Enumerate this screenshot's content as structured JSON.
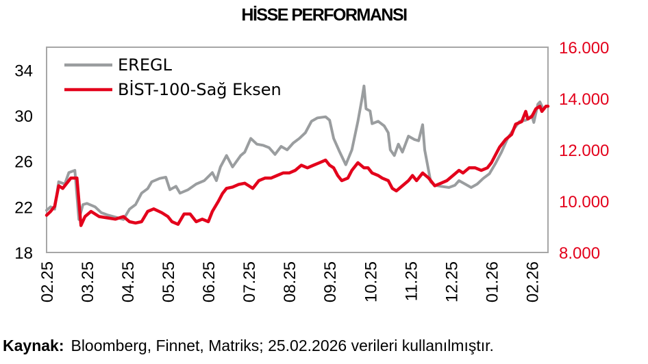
{
  "title": "HİSSE PERFORMANSI",
  "source": {
    "label": "Kaynak:",
    "text": "Bloomberg, Finnet, Matriks; 25.02.2026 verileri kullanılmıştır."
  },
  "colors": {
    "eregl": "#9a9d9f",
    "bist": "#e3001b",
    "left_axis_text": "#000000",
    "right_axis_text": "#e3001b",
    "frame": "#a6a6a6"
  },
  "chart_data": {
    "type": "line",
    "title": "HİSSE PERFORMANSI",
    "x_tick_labels": [
      "02.25",
      "03.25",
      "04.25",
      "05.25",
      "06.25",
      "07.25",
      "08.25",
      "09.25",
      "10.25",
      "11.25",
      "12.25",
      "01.26",
      "02.26"
    ],
    "x_range": [
      0,
      12.4
    ],
    "left_axis": {
      "range": [
        18,
        36
      ],
      "ticks": [
        18,
        22,
        26,
        30,
        34
      ],
      "tick_labels": [
        "18",
        "22",
        "26",
        "30",
        "34"
      ]
    },
    "right_axis": {
      "range": [
        8000,
        16000
      ],
      "ticks": [
        8000,
        10000,
        12000,
        14000,
        16000
      ],
      "tick_labels": [
        "8.000",
        "10.000",
        "12.000",
        "14.000",
        "16.000"
      ]
    },
    "legend": {
      "position": "top-left",
      "entries": [
        "EREGL",
        "BİST-100-Sağ Eksen"
      ]
    },
    "grid": false,
    "series": [
      {
        "name": "EREGL",
        "axis": "left",
        "points": [
          [
            0,
            21.7
          ],
          [
            0.1,
            22.0
          ],
          [
            0.2,
            21.8
          ],
          [
            0.3,
            24.2
          ],
          [
            0.45,
            24.0
          ],
          [
            0.55,
            25.0
          ],
          [
            0.7,
            25.2
          ],
          [
            0.75,
            23.0
          ],
          [
            0.8,
            20.9
          ],
          [
            0.9,
            22.2
          ],
          [
            1.0,
            22.3
          ],
          [
            1.2,
            22.0
          ],
          [
            1.35,
            21.5
          ],
          [
            1.5,
            21.3
          ],
          [
            1.7,
            21.1
          ],
          [
            1.9,
            20.9
          ],
          [
            2.05,
            21.8
          ],
          [
            2.2,
            22.2
          ],
          [
            2.35,
            23.2
          ],
          [
            2.5,
            23.6
          ],
          [
            2.6,
            24.2
          ],
          [
            2.8,
            24.5
          ],
          [
            2.95,
            24.6
          ],
          [
            3.05,
            23.5
          ],
          [
            3.2,
            23.8
          ],
          [
            3.3,
            23.2
          ],
          [
            3.5,
            23.5
          ],
          [
            3.7,
            24.0
          ],
          [
            3.9,
            24.3
          ],
          [
            4.1,
            25.0
          ],
          [
            4.2,
            24.3
          ],
          [
            4.3,
            25.5
          ],
          [
            4.45,
            26.5
          ],
          [
            4.6,
            25.5
          ],
          [
            4.8,
            26.5
          ],
          [
            4.9,
            26.8
          ],
          [
            5.05,
            28.0
          ],
          [
            5.2,
            27.5
          ],
          [
            5.35,
            27.4
          ],
          [
            5.5,
            27.2
          ],
          [
            5.65,
            26.6
          ],
          [
            5.8,
            27.3
          ],
          [
            5.95,
            27.0
          ],
          [
            6.1,
            27.6
          ],
          [
            6.25,
            28.0
          ],
          [
            6.4,
            28.5
          ],
          [
            6.55,
            29.5
          ],
          [
            6.7,
            29.8
          ],
          [
            6.9,
            29.9
          ],
          [
            7.0,
            29.6
          ],
          [
            7.1,
            28.0
          ],
          [
            7.25,
            26.8
          ],
          [
            7.4,
            25.7
          ],
          [
            7.55,
            27.0
          ],
          [
            7.7,
            29.5
          ],
          [
            7.8,
            31.5
          ],
          [
            7.85,
            32.6
          ],
          [
            7.9,
            30.6
          ],
          [
            8.0,
            30.4
          ],
          [
            8.05,
            29.3
          ],
          [
            8.2,
            29.5
          ],
          [
            8.35,
            29.1
          ],
          [
            8.45,
            28.5
          ],
          [
            8.5,
            27.0
          ],
          [
            8.6,
            26.5
          ],
          [
            8.7,
            27.5
          ],
          [
            8.8,
            26.8
          ],
          [
            8.95,
            28.2
          ],
          [
            9.1,
            27.9
          ],
          [
            9.2,
            27.8
          ],
          [
            9.3,
            29.2
          ],
          [
            9.35,
            27.0
          ],
          [
            9.5,
            24.2
          ],
          [
            9.6,
            23.9
          ],
          [
            9.75,
            23.8
          ],
          [
            9.95,
            23.7
          ],
          [
            10.1,
            23.9
          ],
          [
            10.2,
            24.3
          ],
          [
            10.35,
            24.0
          ],
          [
            10.5,
            23.7
          ],
          [
            10.65,
            24.0
          ],
          [
            10.8,
            24.5
          ],
          [
            10.95,
            24.9
          ],
          [
            11.1,
            25.8
          ],
          [
            11.25,
            26.8
          ],
          [
            11.4,
            28.0
          ],
          [
            11.55,
            28.8
          ],
          [
            11.7,
            29.5
          ],
          [
            11.85,
            29.6
          ],
          [
            12.0,
            30.0
          ],
          [
            12.05,
            29.4
          ],
          [
            12.15,
            31.0
          ],
          [
            12.2,
            31.2
          ],
          [
            12.28,
            30.6
          ]
        ]
      },
      {
        "name": "BİST-100-Sağ Eksen",
        "axis": "right",
        "points": [
          [
            0,
            9.45
          ],
          [
            0.1,
            9.6
          ],
          [
            0.2,
            9.8
          ],
          [
            0.3,
            10.6
          ],
          [
            0.4,
            10.5
          ],
          [
            0.5,
            10.7
          ],
          [
            0.6,
            10.9
          ],
          [
            0.75,
            10.9
          ],
          [
            0.8,
            10.0
          ],
          [
            0.85,
            9.05
          ],
          [
            0.95,
            9.4
          ],
          [
            1.1,
            9.6
          ],
          [
            1.3,
            9.4
          ],
          [
            1.5,
            9.35
          ],
          [
            1.7,
            9.3
          ],
          [
            1.9,
            9.4
          ],
          [
            2.05,
            9.2
          ],
          [
            2.2,
            9.15
          ],
          [
            2.35,
            9.2
          ],
          [
            2.5,
            9.6
          ],
          [
            2.65,
            9.7
          ],
          [
            2.85,
            9.55
          ],
          [
            3.0,
            9.4
          ],
          [
            3.1,
            9.2
          ],
          [
            3.25,
            9.1
          ],
          [
            3.4,
            9.5
          ],
          [
            3.55,
            9.5
          ],
          [
            3.7,
            9.2
          ],
          [
            3.85,
            9.3
          ],
          [
            4.0,
            9.2
          ],
          [
            4.1,
            9.6
          ],
          [
            4.25,
            10.0
          ],
          [
            4.35,
            10.3
          ],
          [
            4.45,
            10.5
          ],
          [
            4.6,
            10.55
          ],
          [
            4.75,
            10.65
          ],
          [
            4.9,
            10.7
          ],
          [
            5.0,
            10.6
          ],
          [
            5.1,
            10.5
          ],
          [
            5.25,
            10.8
          ],
          [
            5.4,
            10.9
          ],
          [
            5.55,
            10.9
          ],
          [
            5.7,
            11.0
          ],
          [
            5.85,
            11.1
          ],
          [
            6.0,
            11.1
          ],
          [
            6.15,
            11.2
          ],
          [
            6.3,
            11.4
          ],
          [
            6.45,
            11.3
          ],
          [
            6.6,
            11.4
          ],
          [
            6.75,
            11.5
          ],
          [
            6.9,
            11.6
          ],
          [
            7.0,
            11.4
          ],
          [
            7.1,
            11.3
          ],
          [
            7.2,
            11.0
          ],
          [
            7.3,
            10.8
          ],
          [
            7.45,
            10.9
          ],
          [
            7.55,
            11.2
          ],
          [
            7.7,
            11.5
          ],
          [
            7.85,
            11.3
          ],
          [
            7.95,
            11.3
          ],
          [
            8.05,
            11.1
          ],
          [
            8.2,
            11.0
          ],
          [
            8.3,
            10.9
          ],
          [
            8.45,
            10.8
          ],
          [
            8.55,
            10.5
          ],
          [
            8.65,
            10.4
          ],
          [
            8.8,
            10.6
          ],
          [
            8.95,
            10.8
          ],
          [
            9.05,
            11.0
          ],
          [
            9.15,
            10.8
          ],
          [
            9.3,
            11.1
          ],
          [
            9.45,
            10.9
          ],
          [
            9.6,
            10.6
          ],
          [
            9.75,
            10.7
          ],
          [
            9.9,
            10.8
          ],
          [
            10.05,
            11.0
          ],
          [
            10.2,
            11.2
          ],
          [
            10.3,
            11.1
          ],
          [
            10.45,
            11.3
          ],
          [
            10.6,
            11.3
          ],
          [
            10.75,
            11.2
          ],
          [
            10.9,
            11.3
          ],
          [
            11.0,
            11.5
          ],
          [
            11.1,
            11.8
          ],
          [
            11.2,
            12.1
          ],
          [
            11.35,
            12.4
          ],
          [
            11.5,
            12.6
          ],
          [
            11.6,
            13.0
          ],
          [
            11.75,
            13.1
          ],
          [
            11.85,
            13.5
          ],
          [
            11.9,
            13.2
          ],
          [
            12.0,
            13.3
          ],
          [
            12.1,
            13.6
          ],
          [
            12.2,
            13.7
          ],
          [
            12.25,
            13.5
          ],
          [
            12.35,
            13.7
          ],
          [
            12.4,
            13.7
          ]
        ]
      }
    ]
  }
}
